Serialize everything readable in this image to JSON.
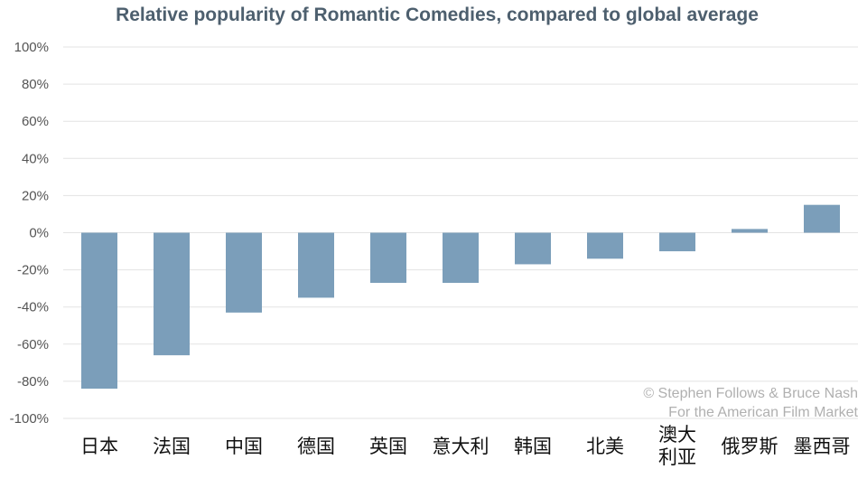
{
  "chart_data": {
    "type": "bar",
    "title": "Relative popularity of Romantic Comedies, compared to global average",
    "xlabel": "",
    "ylabel": "",
    "categories": [
      "日本",
      "法国",
      "中国",
      "德国",
      "英国",
      "意大利",
      "韩国",
      "北美",
      "澳大利亚",
      "俄罗斯",
      "墨西哥"
    ],
    "category_lines": [
      [
        "日本"
      ],
      [
        "法国"
      ],
      [
        "中国"
      ],
      [
        "德国"
      ],
      [
        "英国"
      ],
      [
        "意大利"
      ],
      [
        "韩国"
      ],
      [
        "北美"
      ],
      [
        "澳大",
        "利亚"
      ],
      [
        "俄罗斯"
      ],
      [
        "墨西哥"
      ]
    ],
    "values": [
      -84,
      -66,
      -43,
      -35,
      -27,
      -27,
      -17,
      -14,
      -10,
      2,
      15
    ],
    "ylim": [
      -100,
      100
    ],
    "yticks": [
      100,
      80,
      60,
      40,
      20,
      0,
      -20,
      -40,
      -60,
      -80,
      -100
    ],
    "ytick_labels": [
      "100%",
      "80%",
      "60%",
      "40%",
      "20%",
      "0%",
      "-20%",
      "-40%",
      "-60%",
      "-80%",
      "-100%"
    ],
    "grid": true,
    "credit": [
      "© Stephen Follows & Bruce Nash",
      "For the American Film Market"
    ],
    "colors": {
      "bar": "#7b9eba",
      "title": "#4d5f6e",
      "tick_label": "#555555",
      "x_label": "#111111",
      "grid": "#e3e3e3",
      "credit": "#b0b0b0"
    }
  }
}
